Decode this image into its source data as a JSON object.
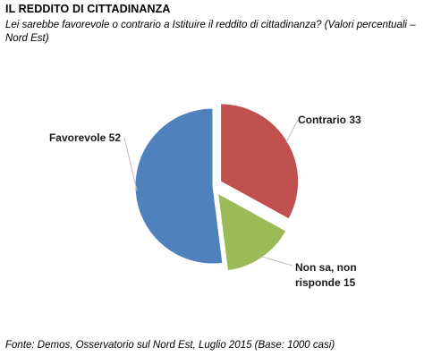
{
  "header": {
    "title": "IL REDDITO DI CITTADINANZA",
    "subtitle": "Lei sarebbe favorevole o contrario a Istituire il reddito di cittadinanza? (Valori percentuali – Nord Est)"
  },
  "footer": {
    "source": "Fonte: Demos, Osservatorio sul Nord Est, Luglio 2015 (Base: 1000 casi)"
  },
  "chart_data": {
    "type": "pie",
    "slices": [
      {
        "label": "Contrario",
        "value": 33,
        "color": "#c0504d",
        "exploded": true,
        "label_lines": [
          "Contrario 33"
        ]
      },
      {
        "label": "Non sa, non risponde",
        "value": 15,
        "color": "#9bbb59",
        "exploded": true,
        "label_lines": [
          "Non sa, non",
          "risponde 15"
        ]
      },
      {
        "label": "Favorevole",
        "value": 52,
        "color": "#4f81bd",
        "exploded": false,
        "label_lines": [
          "Favorevole 52"
        ]
      }
    ],
    "start": "top",
    "direction": "clockwise",
    "leader_lines": true
  }
}
